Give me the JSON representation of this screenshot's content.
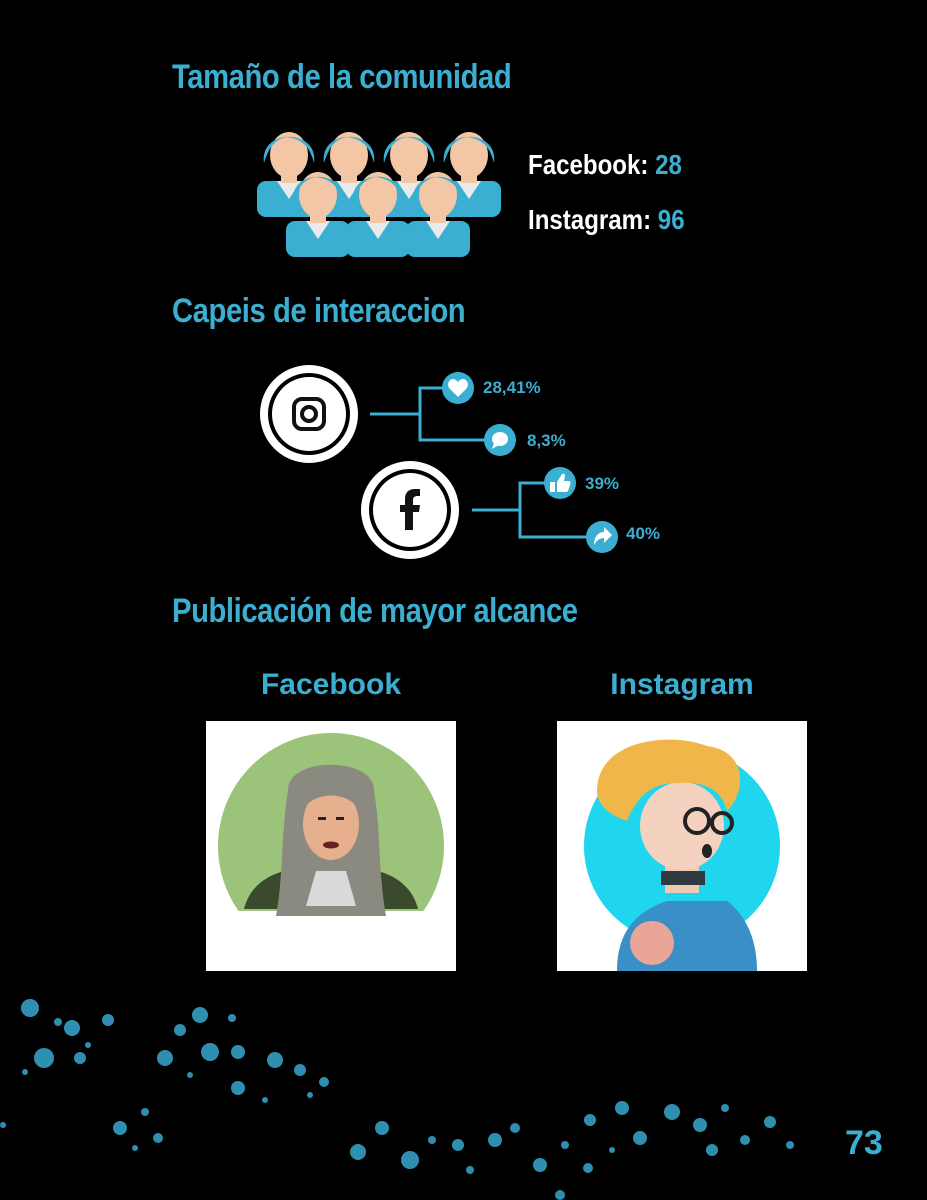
{
  "sections": {
    "community_title": "Tamaño de la comunidad",
    "interaction_title": "Capeis de interaccion",
    "reach_title": "Publicación de mayor alcance"
  },
  "community": {
    "facebook_label": "Facebook:",
    "facebook_value": "28",
    "instagram_label": "Instagram:",
    "instagram_value": "96",
    "icon": "people-group-icon"
  },
  "interaction": {
    "instagram": {
      "icon": "instagram-icon",
      "likes": "28,41%",
      "comments": "8,3%"
    },
    "facebook": {
      "icon": "facebook-icon",
      "likes": "39%",
      "shares": "40%"
    }
  },
  "reach": {
    "facebook_label": "Facebook",
    "instagram_label": "Instagram"
  },
  "colors": {
    "accent": "#3aafd1",
    "background": "#000000",
    "skin": "#f3c6a5"
  },
  "page_number": "73"
}
